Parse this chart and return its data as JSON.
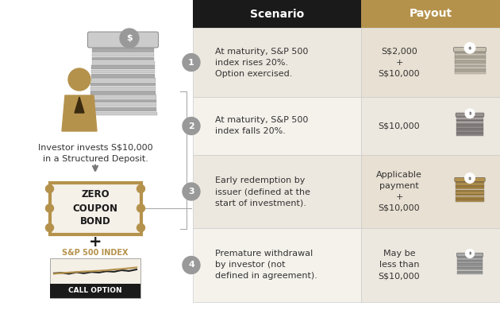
{
  "bg_color": "#ffffff",
  "header_bg": "#1a1a1a",
  "payout_header_bg": "#b5924c",
  "row_bg_odd": "#ede8df",
  "row_bg_even": "#f5f2ec",
  "payout_bg_odd": "#e8e0d2",
  "payout_bg_even": "#ede8df",
  "body_text_color": "#333333",
  "gold_color": "#b5924c",
  "number_circle_color": "#999999",
  "scenarios": [
    {
      "num": "1",
      "text": "At maturity, S&P 500\nindex rises 20%.\nOption exercised.",
      "payout": "S$2,000\n+\nS$10,000",
      "icon_color": "#c8c0b0"
    },
    {
      "num": "2",
      "text": "At maturity, S&P 500\nindex falls 20%.",
      "payout": "S$10,000",
      "icon_color": "#999090"
    },
    {
      "num": "3",
      "text": "Early redemption by\nissuer (defined at the\nstart of investment).",
      "payout": "Applicable\npayment\n+\nS$10,000",
      "icon_color": "#b5924c"
    },
    {
      "num": "4",
      "text": "Premature withdrawal\nby investor (not\ndefined in agreement).",
      "payout": "May be\nless than\nS$10,000",
      "icon_color": "#aaaaaa"
    }
  ]
}
